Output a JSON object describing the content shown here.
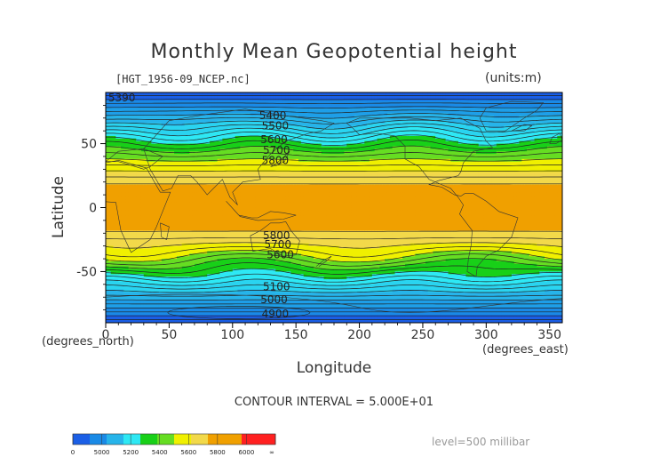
{
  "chart_data": {
    "type": "contour",
    "title": "Monthly Mean Geopotential height",
    "source_label": "[HGT_1956-09_NCEP.nc]",
    "units_label": "(units:m)",
    "xlabel": "Longitude",
    "ylabel": "Latitude",
    "x_unit_label": "(degrees_north)",
    "y_unit_label": "(degrees_east)",
    "xlim": [
      0,
      360
    ],
    "ylim": [
      -90,
      90
    ],
    "x_ticks": [
      "0",
      "50",
      "100",
      "150",
      "200",
      "250",
      "300",
      "350"
    ],
    "y_ticks": [
      "50",
      "0",
      "-50"
    ],
    "contour_interval_text": "CONTOUR INTERVAL = 5.000E+01",
    "level_text": "level=500 millibar",
    "colorbar": {
      "labels": [
        "0",
        "5000",
        "5200",
        "5400",
        "5600",
        "5800",
        "6000",
        "∞"
      ],
      "colors": [
        "#1b5fe6",
        "#1a8ae6",
        "#27b4ea",
        "#2ee8f4",
        "#18d018",
        "#66dd22",
        "#f0f000",
        "#f2d94a",
        "#f0a000",
        "#f0a000",
        "#ff2020",
        "#ff2020"
      ]
    },
    "series": [
      {
        "name": "5390",
        "values": [
          [
            2,
            86
          ]
        ]
      },
      {
        "name": "5400",
        "values": [
          [
            121,
            72
          ]
        ]
      },
      {
        "name": "5500",
        "values": [
          [
            123,
            64
          ]
        ]
      },
      {
        "name": "5600",
        "values": [
          [
            122,
            53
          ]
        ]
      },
      {
        "name": "5700",
        "values": [
          [
            124,
            45
          ]
        ]
      },
      {
        "name": "5800",
        "values": [
          [
            123,
            37
          ]
        ]
      },
      {
        "name": "5800",
        "values": [
          [
            124,
            -22
          ]
        ]
      },
      {
        "name": "5700",
        "values": [
          [
            125,
            -29
          ]
        ]
      },
      {
        "name": "5600",
        "values": [
          [
            127,
            -37
          ]
        ]
      },
      {
        "name": "5100",
        "values": [
          [
            124,
            -62
          ]
        ]
      },
      {
        "name": "5000",
        "values": [
          [
            122,
            -72
          ]
        ]
      },
      {
        "name": "4900",
        "values": [
          [
            123,
            -83
          ]
        ]
      }
    ]
  }
}
